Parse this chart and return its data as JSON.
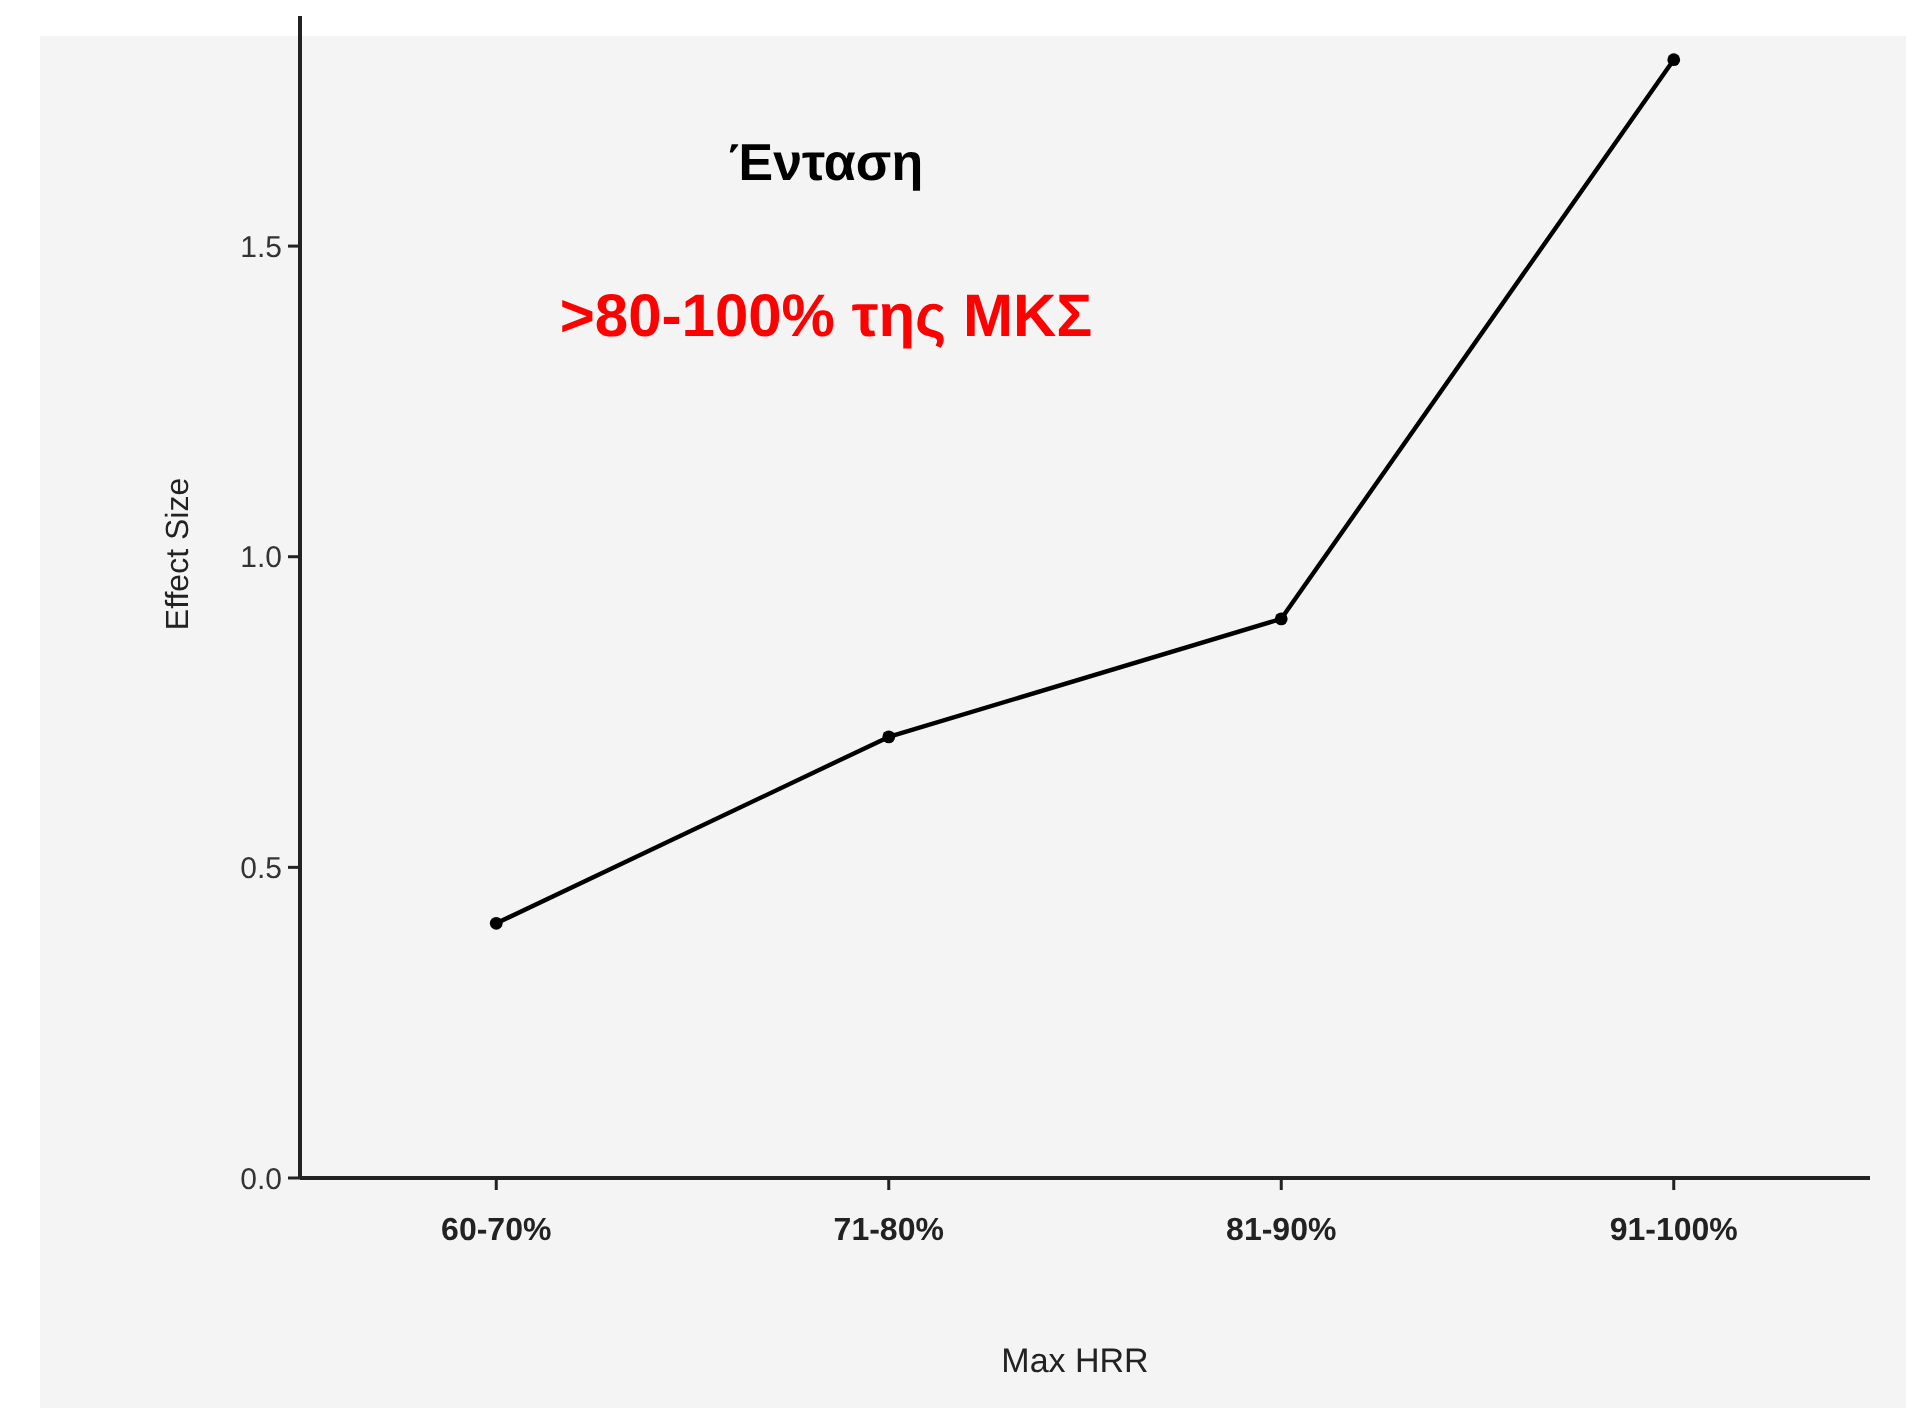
{
  "chart_data": {
    "type": "line",
    "title": "Ένταση",
    "subtitle": ">80-100% της ΜΚΣ",
    "xlabel": "Max HRR",
    "ylabel": "Effect Size",
    "categories": [
      "60-70%",
      "71-80%",
      "81-90%",
      "91-100%"
    ],
    "series": [
      {
        "color": "#000000",
        "values": [
          0.41,
          0.71,
          0.9,
          1.8
        ]
      }
    ],
    "ylim": [
      0,
      1.88
    ],
    "yticks": [
      {
        "value": 0,
        "label": "0.0"
      },
      {
        "value": 0.5,
        "label": "0.5"
      },
      {
        "value": 1,
        "label": "1.0"
      },
      {
        "value": 1.5,
        "label": "1.5"
      }
    ],
    "grid": false,
    "marker": "circle",
    "line_style": "solid"
  }
}
